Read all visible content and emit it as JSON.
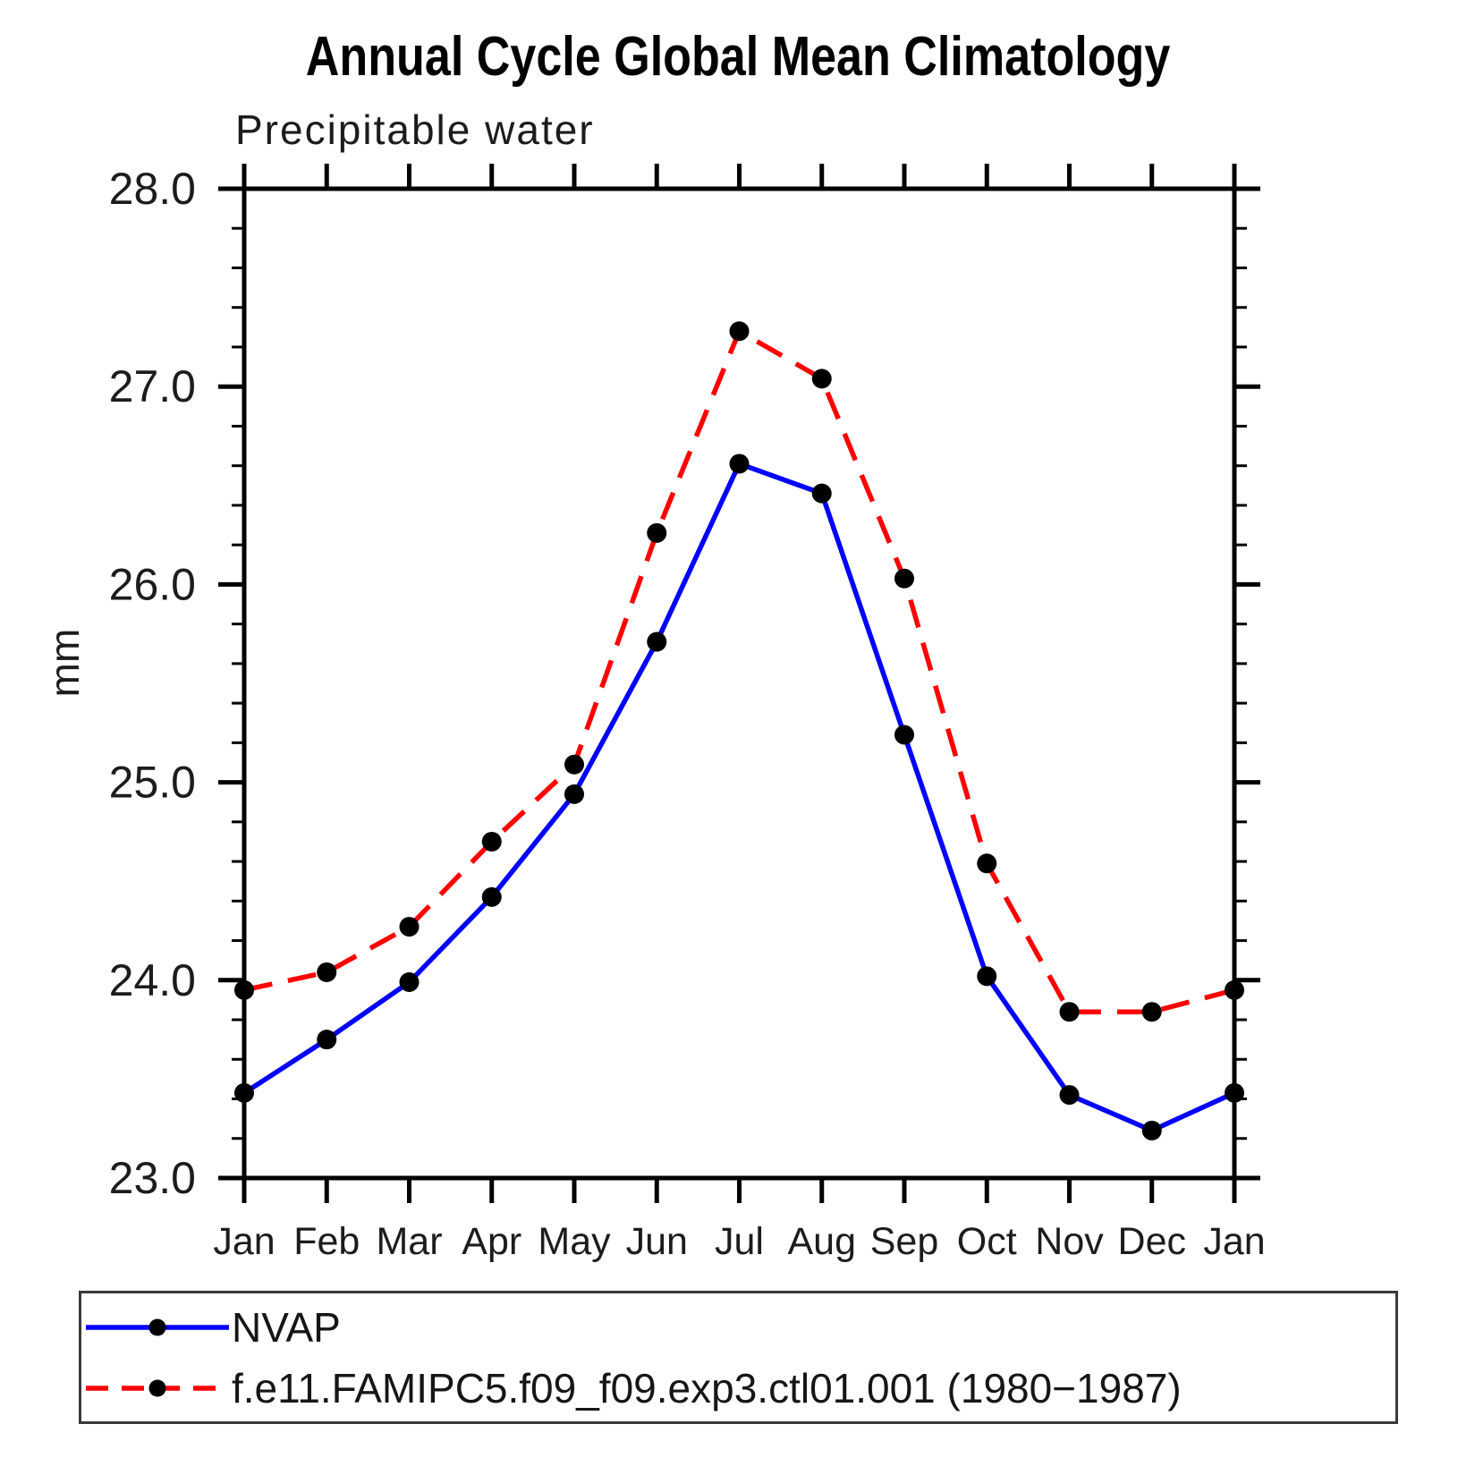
{
  "title": "Annual Cycle Global Mean Climatology",
  "subtitle": "Precipitable water",
  "ylabel": "mm",
  "colors": {
    "nvap_line": "#0000ff",
    "model_line": "#ff0000",
    "marker": "#000000",
    "axis": "#000000",
    "text": "#1c1c1c",
    "legend_border": "#3a3a3a",
    "background": "#ffffff"
  },
  "legend": {
    "position": "bottom",
    "items": [
      {
        "label": "NVAP",
        "line_style": "solid",
        "color": "#0000ff"
      },
      {
        "label": "f.e11.FAMIPC5.f09_f09.exp3.ctl01.001 (1980−1987)",
        "line_style": "dashed",
        "color": "#ff0000"
      }
    ]
  },
  "chart_data": {
    "type": "line",
    "categories": [
      "Jan",
      "Feb",
      "Mar",
      "Apr",
      "May",
      "Jun",
      "Jul",
      "Aug",
      "Sep",
      "Oct",
      "Nov",
      "Dec",
      "Jan"
    ],
    "series": [
      {
        "name": "NVAP",
        "color": "#0000ff",
        "line_style": "solid",
        "marker": "filled-circle",
        "values": [
          23.43,
          23.7,
          23.99,
          24.42,
          24.94,
          25.71,
          26.61,
          26.46,
          25.24,
          24.02,
          23.42,
          23.24,
          23.43
        ]
      },
      {
        "name": "f.e11.FAMIPC5.f09_f09.exp3.ctl01.001 (1980−1987)",
        "color": "#ff0000",
        "line_style": "dashed",
        "marker": "filled-circle",
        "values": [
          23.95,
          24.04,
          24.27,
          24.7,
          25.09,
          26.26,
          27.28,
          27.04,
          26.03,
          24.59,
          23.84,
          23.84,
          23.95
        ]
      }
    ],
    "xlabel": "",
    "ylabel": "mm",
    "ylim": [
      23.0,
      28.0
    ],
    "ytick_values": [
      23.0,
      24.0,
      25.0,
      26.0,
      27.0,
      28.0
    ],
    "ytick_labels": [
      "23.0",
      "24.0",
      "25.0",
      "26.0",
      "27.0",
      "28.0"
    ],
    "y_minor_step": 0.2,
    "grid": false,
    "legend_position": "bottom"
  }
}
